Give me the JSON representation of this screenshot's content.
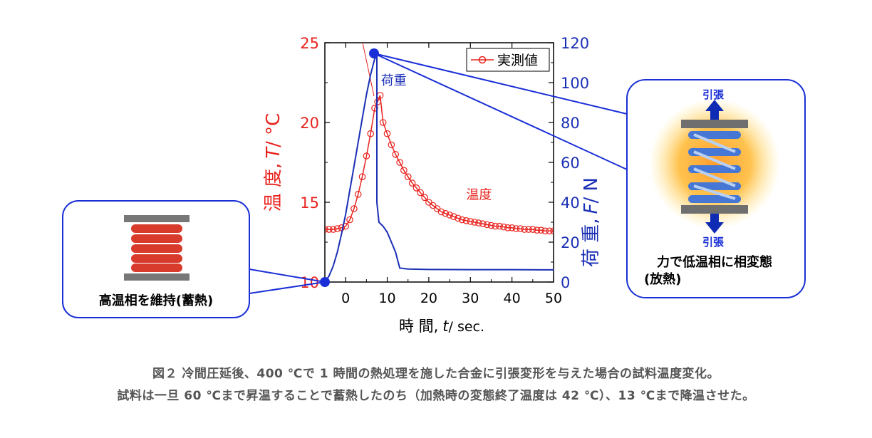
{
  "colors": {
    "temperature": "#e8231e",
    "load": "#1a2fb5",
    "axis": "#000000",
    "callout_border": "#1a2fd6",
    "caption": "#555555"
  },
  "chart_data": {
    "type": "line",
    "x_axis": {
      "label_main": "時 間,",
      "label_var": "t",
      "label_unit": "/ sec.",
      "range": [
        -5,
        50
      ],
      "ticks": [
        0,
        10,
        20,
        30,
        40,
        50
      ],
      "tick_labels": [
        "0",
        "10",
        "20",
        "30",
        "40",
        "50"
      ]
    },
    "y_left": {
      "label_main": "温 度,",
      "label_var": "T",
      "label_unit": "/ °C",
      "range": [
        10,
        25
      ],
      "ticks": [
        10,
        15,
        20,
        25
      ],
      "tick_labels": [
        "10",
        "15",
        "20",
        "25"
      ]
    },
    "y_right": {
      "label_main": "荷 重,",
      "label_var": "F",
      "label_unit": "/ N",
      "range": [
        0,
        120
      ],
      "ticks": [
        0,
        20,
        40,
        60,
        80,
        100,
        120
      ],
      "tick_labels": [
        "0",
        "20",
        "40",
        "60",
        "80",
        "100",
        "120"
      ]
    },
    "legend": {
      "label": "実測値",
      "placement": "top-right"
    },
    "series": [
      {
        "name": "温度",
        "axis": "left",
        "marker": "open-circle",
        "x": [
          -5,
          -4,
          -3,
          -2,
          -1,
          0,
          1,
          2,
          3,
          4,
          5,
          6,
          7,
          7.7,
          8.3,
          9,
          10,
          11,
          12,
          13,
          14,
          15,
          16,
          17,
          18,
          19,
          20,
          21,
          22,
          23,
          24,
          25,
          26,
          27,
          28,
          29,
          30,
          31,
          32,
          33,
          34,
          35,
          36,
          37,
          38,
          39,
          40,
          41,
          42,
          43,
          44,
          45,
          46,
          47,
          48,
          49,
          50
        ],
        "y": [
          13.3,
          13.3,
          13.3,
          13.35,
          13.4,
          13.5,
          13.9,
          14.6,
          15.5,
          16.6,
          17.9,
          19.3,
          20.9,
          21.3,
          21.7,
          20.0,
          19.3,
          18.6,
          18.0,
          17.5,
          17.0,
          16.6,
          16.2,
          15.9,
          15.6,
          15.3,
          15.0,
          14.8,
          14.6,
          14.4,
          14.3,
          14.2,
          14.1,
          14.0,
          13.9,
          13.85,
          13.8,
          13.75,
          13.7,
          13.65,
          13.6,
          13.55,
          13.5,
          13.5,
          13.45,
          13.4,
          13.4,
          13.35,
          13.35,
          13.3,
          13.3,
          13.3,
          13.25,
          13.25,
          13.2,
          13.2,
          13.2
        ]
      },
      {
        "name": "荷重",
        "axis": "right",
        "marker": "none",
        "x": [
          -5,
          -4,
          -3,
          -2,
          -1,
          0,
          1,
          2,
          3,
          4,
          5,
          6,
          7,
          7.5,
          7.5,
          8,
          9,
          10,
          11,
          12,
          13,
          15,
          20,
          30,
          40,
          50
        ],
        "y": [
          0,
          3,
          8,
          15,
          24,
          34,
          46,
          58,
          70,
          82,
          94,
          104,
          112,
          113,
          40,
          30,
          28,
          25,
          20,
          15,
          7,
          6.5,
          6.3,
          6.2,
          6.2,
          6.1
        ]
      }
    ],
    "annotations": [
      {
        "text": "荷重",
        "x": 8.5,
        "y_right": 99
      },
      {
        "text": "温度",
        "x": 29,
        "y_left": 15.2
      }
    ]
  },
  "callouts": {
    "left": {
      "text": "高温相を維持(蓄熱)"
    },
    "right": {
      "arrow_top": "引張",
      "arrow_bottom": "引張",
      "line1": "力で低温相に相変態",
      "line2": "(放熱)"
    }
  },
  "caption": {
    "line1": "図２ 冷間圧延後、400 ℃で 1 時間の熱処理を施した合金に引張変形を与えた場合の試料温度変化。",
    "line2": "試料は一旦 60 ℃まで昇温することで蓄熱したのち（加熱時の変態終了温度は 42 ℃）、13 ℃まで降温させた。"
  }
}
